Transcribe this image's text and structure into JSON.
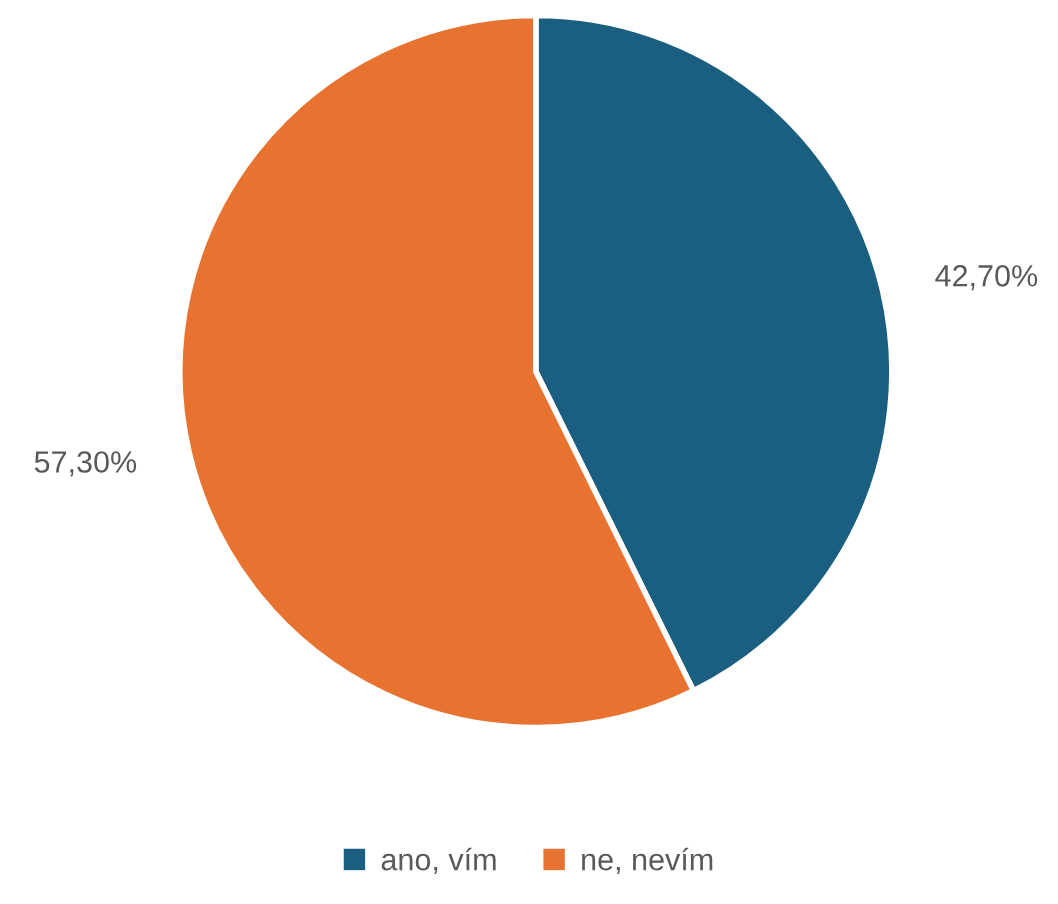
{
  "chart_data": {
    "type": "pie",
    "categories": [
      "ano, vím",
      "ne, nevím"
    ],
    "values": [
      42.7,
      57.3
    ],
    "value_labels": [
      "42,70%",
      "57,30%"
    ],
    "colors": [
      "#1a5e80",
      "#e87331"
    ],
    "legend": "bottom"
  }
}
